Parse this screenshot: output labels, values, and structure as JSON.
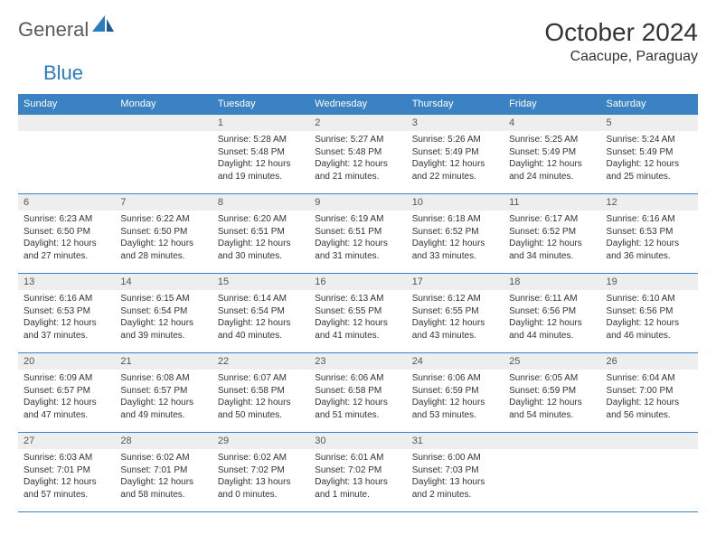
{
  "brand": {
    "general": "General",
    "blue": "Blue"
  },
  "title": "October 2024",
  "location": "Caacupe, Paraguay",
  "colors": {
    "header_bg": "#3b82c4",
    "header_text": "#ffffff",
    "daynum_bg": "#eeeeee",
    "border": "#3b82c4",
    "body_text": "#333333",
    "logo_gray": "#5a5a5a",
    "logo_blue": "#2b7bbf"
  },
  "typography": {
    "month_title_fontsize": 28,
    "location_fontsize": 16,
    "day_header_fontsize": 11,
    "daynum_fontsize": 11,
    "content_fontsize": 10
  },
  "day_headers": [
    "Sunday",
    "Monday",
    "Tuesday",
    "Wednesday",
    "Thursday",
    "Friday",
    "Saturday"
  ],
  "weeks": [
    [
      {
        "num": "",
        "lines": []
      },
      {
        "num": "",
        "lines": []
      },
      {
        "num": "1",
        "lines": [
          "Sunrise: 5:28 AM",
          "Sunset: 5:48 PM",
          "Daylight: 12 hours",
          "and 19 minutes."
        ]
      },
      {
        "num": "2",
        "lines": [
          "Sunrise: 5:27 AM",
          "Sunset: 5:48 PM",
          "Daylight: 12 hours",
          "and 21 minutes."
        ]
      },
      {
        "num": "3",
        "lines": [
          "Sunrise: 5:26 AM",
          "Sunset: 5:49 PM",
          "Daylight: 12 hours",
          "and 22 minutes."
        ]
      },
      {
        "num": "4",
        "lines": [
          "Sunrise: 5:25 AM",
          "Sunset: 5:49 PM",
          "Daylight: 12 hours",
          "and 24 minutes."
        ]
      },
      {
        "num": "5",
        "lines": [
          "Sunrise: 5:24 AM",
          "Sunset: 5:49 PM",
          "Daylight: 12 hours",
          "and 25 minutes."
        ]
      }
    ],
    [
      {
        "num": "6",
        "lines": [
          "Sunrise: 6:23 AM",
          "Sunset: 6:50 PM",
          "Daylight: 12 hours",
          "and 27 minutes."
        ]
      },
      {
        "num": "7",
        "lines": [
          "Sunrise: 6:22 AM",
          "Sunset: 6:50 PM",
          "Daylight: 12 hours",
          "and 28 minutes."
        ]
      },
      {
        "num": "8",
        "lines": [
          "Sunrise: 6:20 AM",
          "Sunset: 6:51 PM",
          "Daylight: 12 hours",
          "and 30 minutes."
        ]
      },
      {
        "num": "9",
        "lines": [
          "Sunrise: 6:19 AM",
          "Sunset: 6:51 PM",
          "Daylight: 12 hours",
          "and 31 minutes."
        ]
      },
      {
        "num": "10",
        "lines": [
          "Sunrise: 6:18 AM",
          "Sunset: 6:52 PM",
          "Daylight: 12 hours",
          "and 33 minutes."
        ]
      },
      {
        "num": "11",
        "lines": [
          "Sunrise: 6:17 AM",
          "Sunset: 6:52 PM",
          "Daylight: 12 hours",
          "and 34 minutes."
        ]
      },
      {
        "num": "12",
        "lines": [
          "Sunrise: 6:16 AM",
          "Sunset: 6:53 PM",
          "Daylight: 12 hours",
          "and 36 minutes."
        ]
      }
    ],
    [
      {
        "num": "13",
        "lines": [
          "Sunrise: 6:16 AM",
          "Sunset: 6:53 PM",
          "Daylight: 12 hours",
          "and 37 minutes."
        ]
      },
      {
        "num": "14",
        "lines": [
          "Sunrise: 6:15 AM",
          "Sunset: 6:54 PM",
          "Daylight: 12 hours",
          "and 39 minutes."
        ]
      },
      {
        "num": "15",
        "lines": [
          "Sunrise: 6:14 AM",
          "Sunset: 6:54 PM",
          "Daylight: 12 hours",
          "and 40 minutes."
        ]
      },
      {
        "num": "16",
        "lines": [
          "Sunrise: 6:13 AM",
          "Sunset: 6:55 PM",
          "Daylight: 12 hours",
          "and 41 minutes."
        ]
      },
      {
        "num": "17",
        "lines": [
          "Sunrise: 6:12 AM",
          "Sunset: 6:55 PM",
          "Daylight: 12 hours",
          "and 43 minutes."
        ]
      },
      {
        "num": "18",
        "lines": [
          "Sunrise: 6:11 AM",
          "Sunset: 6:56 PM",
          "Daylight: 12 hours",
          "and 44 minutes."
        ]
      },
      {
        "num": "19",
        "lines": [
          "Sunrise: 6:10 AM",
          "Sunset: 6:56 PM",
          "Daylight: 12 hours",
          "and 46 minutes."
        ]
      }
    ],
    [
      {
        "num": "20",
        "lines": [
          "Sunrise: 6:09 AM",
          "Sunset: 6:57 PM",
          "Daylight: 12 hours",
          "and 47 minutes."
        ]
      },
      {
        "num": "21",
        "lines": [
          "Sunrise: 6:08 AM",
          "Sunset: 6:57 PM",
          "Daylight: 12 hours",
          "and 49 minutes."
        ]
      },
      {
        "num": "22",
        "lines": [
          "Sunrise: 6:07 AM",
          "Sunset: 6:58 PM",
          "Daylight: 12 hours",
          "and 50 minutes."
        ]
      },
      {
        "num": "23",
        "lines": [
          "Sunrise: 6:06 AM",
          "Sunset: 6:58 PM",
          "Daylight: 12 hours",
          "and 51 minutes."
        ]
      },
      {
        "num": "24",
        "lines": [
          "Sunrise: 6:06 AM",
          "Sunset: 6:59 PM",
          "Daylight: 12 hours",
          "and 53 minutes."
        ]
      },
      {
        "num": "25",
        "lines": [
          "Sunrise: 6:05 AM",
          "Sunset: 6:59 PM",
          "Daylight: 12 hours",
          "and 54 minutes."
        ]
      },
      {
        "num": "26",
        "lines": [
          "Sunrise: 6:04 AM",
          "Sunset: 7:00 PM",
          "Daylight: 12 hours",
          "and 56 minutes."
        ]
      }
    ],
    [
      {
        "num": "27",
        "lines": [
          "Sunrise: 6:03 AM",
          "Sunset: 7:01 PM",
          "Daylight: 12 hours",
          "and 57 minutes."
        ]
      },
      {
        "num": "28",
        "lines": [
          "Sunrise: 6:02 AM",
          "Sunset: 7:01 PM",
          "Daylight: 12 hours",
          "and 58 minutes."
        ]
      },
      {
        "num": "29",
        "lines": [
          "Sunrise: 6:02 AM",
          "Sunset: 7:02 PM",
          "Daylight: 13 hours",
          "and 0 minutes."
        ]
      },
      {
        "num": "30",
        "lines": [
          "Sunrise: 6:01 AM",
          "Sunset: 7:02 PM",
          "Daylight: 13 hours",
          "and 1 minute."
        ]
      },
      {
        "num": "31",
        "lines": [
          "Sunrise: 6:00 AM",
          "Sunset: 7:03 PM",
          "Daylight: 13 hours",
          "and 2 minutes."
        ]
      },
      {
        "num": "",
        "lines": []
      },
      {
        "num": "",
        "lines": []
      }
    ]
  ]
}
